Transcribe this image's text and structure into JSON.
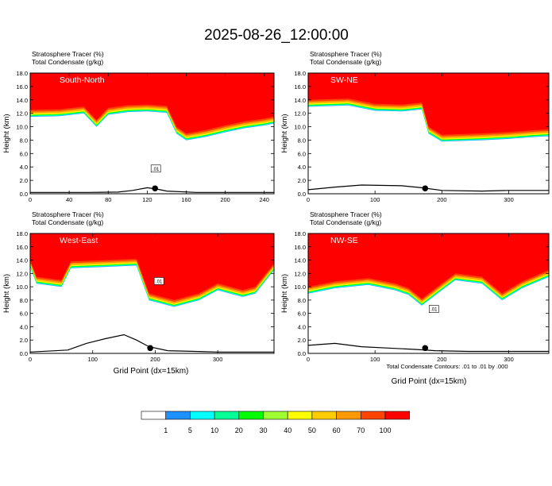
{
  "figure": {
    "title": "2025-08-26_12:00:00",
    "xlabel": "Grid Point (dx=15km)",
    "contour_note": "Total Condensate Contours: .01 to .01 by .000",
    "contour_label": ".01"
  },
  "colorbar": {
    "labels": [
      "1",
      "5",
      "10",
      "20",
      "30",
      "40",
      "50",
      "60",
      "70",
      "100"
    ],
    "colors": [
      "#ffffff",
      "#1e90ff",
      "#00ffff",
      "#00ff96",
      "#00ff00",
      "#a0ff32",
      "#ffff00",
      "#ffcc00",
      "#ff9900",
      "#ff4400",
      "#ff0000"
    ]
  },
  "chart_data": [
    {
      "type": "heatmap",
      "panel": "South-North",
      "legend": [
        "Stratosphere Tracer   (%)",
        "Total Condensate   (g/kg)"
      ],
      "ylabel": "Height (km)",
      "xlim": [
        0,
        250
      ],
      "ylim": [
        0,
        18
      ],
      "xticks": [
        0,
        40,
        80,
        120,
        160,
        200,
        240
      ],
      "yticks": [
        "0.0",
        "2.0",
        "4.0",
        "6.0",
        "8.0",
        "10.0",
        "12.0",
        "14.0",
        "16.0",
        "18.0"
      ],
      "tracer_base_km": [
        [
          0,
          12.5
        ],
        [
          30,
          12.6
        ],
        [
          55,
          13.0
        ],
        [
          68,
          11.0
        ],
        [
          80,
          12.8
        ],
        [
          100,
          13.2
        ],
        [
          120,
          13.3
        ],
        [
          140,
          13.1
        ],
        [
          150,
          10.0
        ],
        [
          160,
          9.0
        ],
        [
          180,
          9.5
        ],
        [
          200,
          10.2
        ],
        [
          220,
          10.8
        ],
        [
          240,
          11.2
        ],
        [
          250,
          11.5
        ]
      ],
      "terrain_km": [
        [
          0,
          0.2
        ],
        [
          60,
          0.2
        ],
        [
          90,
          0.25
        ],
        [
          105,
          0.5
        ],
        [
          120,
          0.9
        ],
        [
          130,
          0.7
        ],
        [
          140,
          0.4
        ],
        [
          170,
          0.2
        ],
        [
          250,
          0.2
        ]
      ],
      "marker_x": 128
    },
    {
      "type": "heatmap",
      "panel": "SW-NE",
      "legend": [
        "Stratosphere Tracer   (%)",
        "Total Condensate   (g/kg)"
      ],
      "ylabel": "Height (km)",
      "xlim": [
        0,
        360
      ],
      "ylim": [
        0,
        18
      ],
      "xticks": [
        0,
        100,
        200,
        300
      ],
      "yticks": [
        "0.0",
        "2.0",
        "4.0",
        "6.0",
        "8.0",
        "10.0",
        "12.0",
        "14.0",
        "16.0",
        "18.0"
      ],
      "tracer_base_km": [
        [
          0,
          14.0
        ],
        [
          60,
          14.2
        ],
        [
          100,
          13.4
        ],
        [
          140,
          13.3
        ],
        [
          170,
          13.6
        ],
        [
          180,
          10.0
        ],
        [
          200,
          8.8
        ],
        [
          260,
          9.0
        ],
        [
          300,
          9.2
        ],
        [
          340,
          9.5
        ],
        [
          360,
          9.6
        ]
      ],
      "terrain_km": [
        [
          0,
          0.6
        ],
        [
          40,
          1.0
        ],
        [
          80,
          1.3
        ],
        [
          140,
          1.2
        ],
        [
          170,
          0.9
        ],
        [
          200,
          0.5
        ],
        [
          260,
          0.4
        ],
        [
          300,
          0.5
        ],
        [
          360,
          0.5
        ]
      ],
      "marker_x": 175
    },
    {
      "type": "heatmap",
      "panel": "West-East",
      "legend": [
        "Stratosphere Tracer   (%)",
        "Total Condensate   (g/kg)"
      ],
      "ylabel": "Height (km)",
      "xlim": [
        0,
        390
      ],
      "ylim": [
        0,
        18
      ],
      "xticks": [
        0,
        100,
        200,
        300
      ],
      "yticks": [
        "0.0",
        "2.0",
        "4.0",
        "6.0",
        "8.0",
        "10.0",
        "12.0",
        "14.0",
        "16.0",
        "18.0"
      ],
      "tracer_base_km": [
        [
          0,
          14.0
        ],
        [
          10,
          11.5
        ],
        [
          50,
          11.0
        ],
        [
          65,
          13.8
        ],
        [
          120,
          14.0
        ],
        [
          170,
          14.2
        ],
        [
          190,
          9.0
        ],
        [
          230,
          8.0
        ],
        [
          270,
          9.0
        ],
        [
          300,
          10.5
        ],
        [
          340,
          9.5
        ],
        [
          360,
          10.0
        ],
        [
          390,
          13.5
        ]
      ],
      "terrain_km": [
        [
          0,
          0.2
        ],
        [
          60,
          0.5
        ],
        [
          90,
          1.5
        ],
        [
          120,
          2.2
        ],
        [
          150,
          2.8
        ],
        [
          170,
          2.0
        ],
        [
          190,
          1.0
        ],
        [
          220,
          0.4
        ],
        [
          300,
          0.2
        ],
        [
          390,
          0.2
        ]
      ],
      "marker_x": 192
    },
    {
      "type": "heatmap",
      "panel": "NW-SE",
      "legend": [
        "Stratosphere Tracer   (%)",
        "Total Condensate   (g/kg)"
      ],
      "ylabel": "Height (km)",
      "xlim": [
        0,
        360
      ],
      "ylim": [
        0,
        18
      ],
      "xticks": [
        0,
        100,
        200,
        300
      ],
      "yticks": [
        "0.0",
        "2.0",
        "4.0",
        "6.0",
        "8.0",
        "10.0",
        "12.0",
        "14.0",
        "16.0",
        "18.0"
      ],
      "tracer_base_km": [
        [
          0,
          10.0
        ],
        [
          40,
          10.8
        ],
        [
          90,
          11.3
        ],
        [
          130,
          10.5
        ],
        [
          150,
          9.8
        ],
        [
          170,
          8.2
        ],
        [
          200,
          10.5
        ],
        [
          220,
          12.0
        ],
        [
          260,
          11.5
        ],
        [
          290,
          9.0
        ],
        [
          320,
          10.8
        ],
        [
          360,
          12.5
        ]
      ],
      "terrain_km": [
        [
          0,
          1.2
        ],
        [
          40,
          1.5
        ],
        [
          80,
          1.0
        ],
        [
          120,
          0.8
        ],
        [
          160,
          0.6
        ],
        [
          190,
          0.4
        ],
        [
          240,
          0.3
        ],
        [
          300,
          0.3
        ],
        [
          360,
          0.3
        ]
      ],
      "marker_x": 175
    }
  ]
}
